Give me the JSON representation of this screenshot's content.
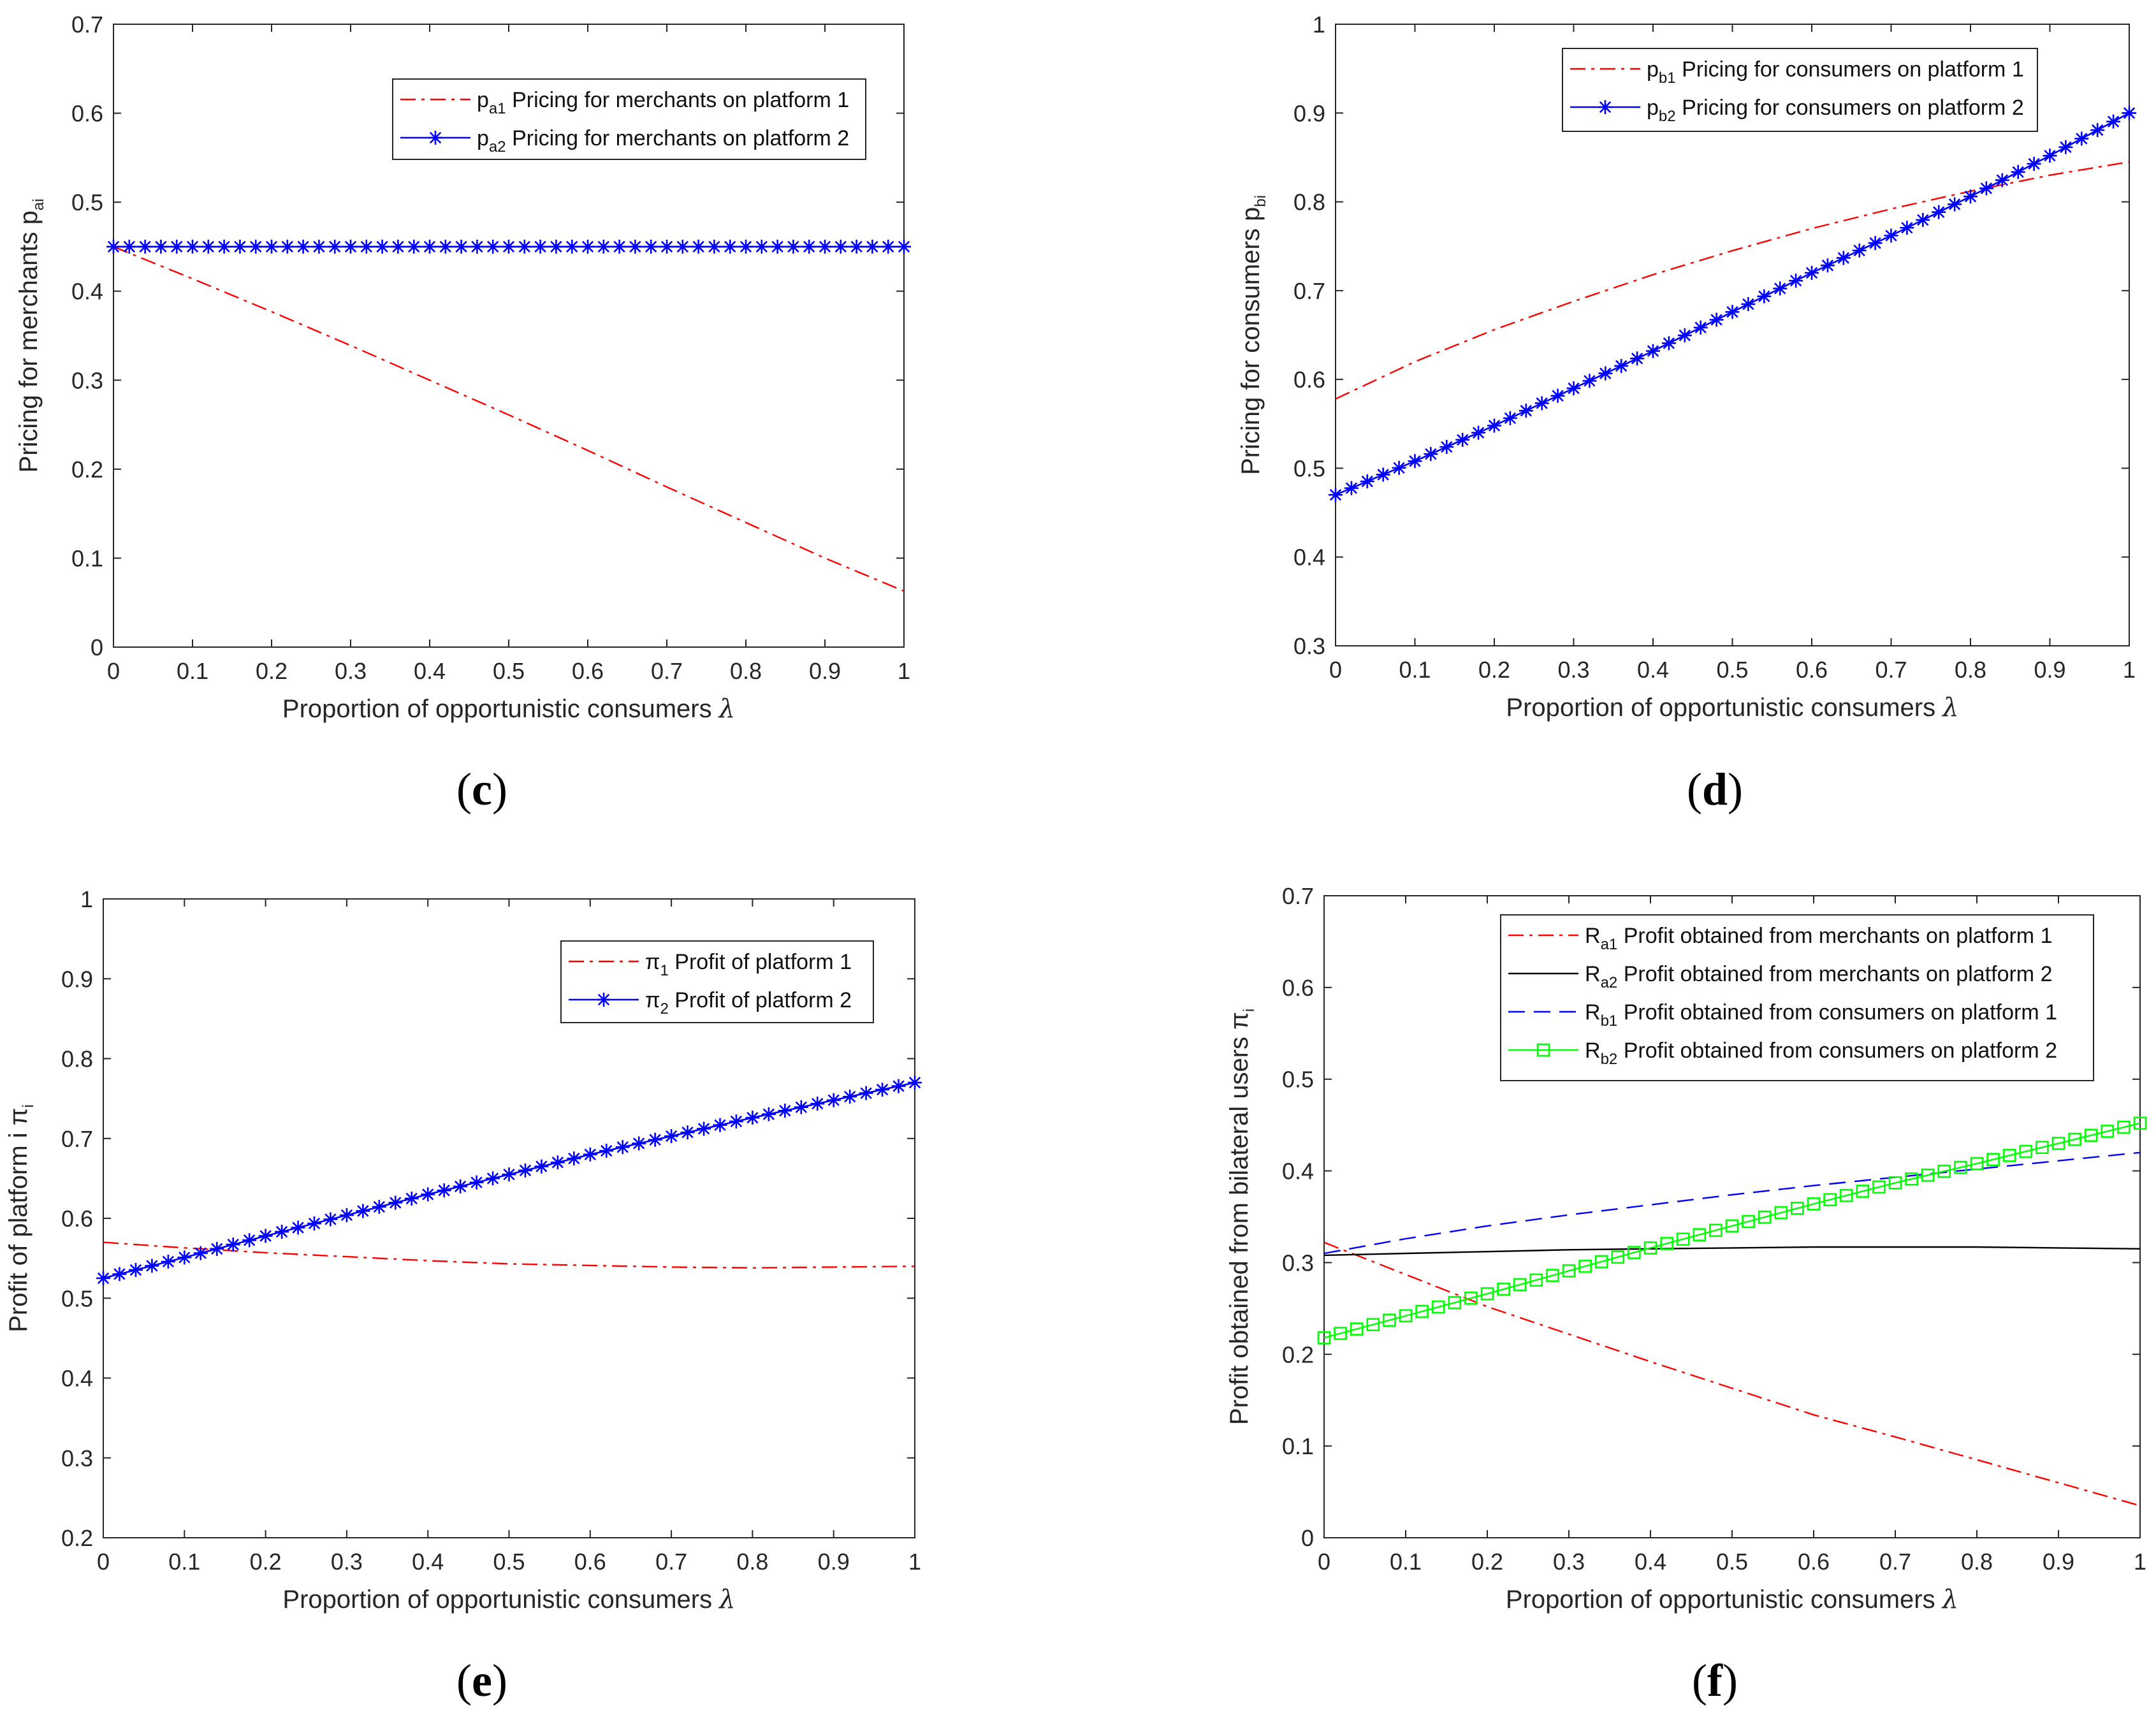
{
  "chart_data": [
    {
      "id": "c",
      "type": "line",
      "caption": "c",
      "xlabel": "Proportion of opportunistic consumers",
      "xlabel_sym": "λ",
      "ylabel": "Pricing for merchants",
      "ylabel_sym": "p",
      "ylabel_sub": "ai",
      "xlim": [
        0,
        1
      ],
      "ylim": [
        0,
        0.7
      ],
      "xticks": [
        0,
        0.1,
        0.2,
        0.3,
        0.4,
        0.5,
        0.6,
        0.7,
        0.8,
        0.9,
        1
      ],
      "xtick_labels": [
        "0",
        "0.1",
        "0.2",
        "0.3",
        "0.4",
        "0.5",
        "0.6",
        "0.7",
        "0.8",
        "0.9",
        "1"
      ],
      "yticks": [
        0,
        0.1,
        0.2,
        0.3,
        0.4,
        0.5,
        0.6,
        0.7
      ],
      "ytick_labels": [
        "0",
        "0.1",
        "0.2",
        "0.3",
        "0.4",
        "0.5",
        "0.6",
        "0.7"
      ],
      "legend_position": "top-right",
      "series": [
        {
          "name": "Pricing for merchants on platform 1",
          "sym": "p",
          "sub": "a1",
          "color": "#ff0000",
          "style": "dashdot",
          "marker": "none",
          "x": [
            0,
            0.1,
            0.2,
            0.3,
            0.4,
            0.5,
            0.6,
            0.7,
            0.8,
            0.9,
            1
          ],
          "y": [
            0.45,
            0.414,
            0.377,
            0.339,
            0.3,
            0.261,
            0.221,
            0.18,
            0.14,
            0.1,
            0.063
          ]
        },
        {
          "name": "Pricing for merchants on platform 2",
          "sym": "p",
          "sub": "a2",
          "color": "#0000ff",
          "style": "solid",
          "marker": "star",
          "x": [
            0,
            0.1,
            0.2,
            0.3,
            0.4,
            0.5,
            0.6,
            0.7,
            0.8,
            0.9,
            1
          ],
          "y": [
            0.45,
            0.45,
            0.45,
            0.45,
            0.45,
            0.45,
            0.45,
            0.45,
            0.45,
            0.45,
            0.45
          ]
        }
      ]
    },
    {
      "id": "d",
      "type": "line",
      "caption": "d",
      "xlabel": "Proportion of opportunistic consumers",
      "xlabel_sym": "λ",
      "ylabel": "Pricing for consumers",
      "ylabel_sym": "p",
      "ylabel_sub": "bi",
      "xlim": [
        0,
        1
      ],
      "ylim": [
        0.3,
        1
      ],
      "xticks": [
        0,
        0.1,
        0.2,
        0.3,
        0.4,
        0.5,
        0.6,
        0.7,
        0.8,
        0.9,
        1
      ],
      "xtick_labels": [
        "0",
        "0.1",
        "0.2",
        "0.3",
        "0.4",
        "0.5",
        "0.6",
        "0.7",
        "0.8",
        "0.9",
        "1"
      ],
      "yticks": [
        0.3,
        0.4,
        0.5,
        0.6,
        0.7,
        0.8,
        0.9,
        1
      ],
      "ytick_labels": [
        "0.3",
        "0.4",
        "0.5",
        "0.6",
        "0.7",
        "0.8",
        "0.9",
        "1"
      ],
      "legend_position": "top-right",
      "series": [
        {
          "name": "Pricing for consumers on platform 1",
          "sym": "p",
          "sub": "b1",
          "color": "#ff0000",
          "style": "dashdot",
          "marker": "none",
          "x": [
            0,
            0.1,
            0.2,
            0.3,
            0.4,
            0.5,
            0.6,
            0.7,
            0.8,
            0.9,
            1
          ],
          "y": [
            0.578,
            0.62,
            0.656,
            0.688,
            0.718,
            0.745,
            0.77,
            0.792,
            0.812,
            0.83,
            0.845
          ]
        },
        {
          "name": "Pricing for consumers on platform 2",
          "sym": "p",
          "sub": "b2",
          "color": "#0000ff",
          "style": "solid",
          "marker": "star",
          "x": [
            0,
            0.1,
            0.2,
            0.3,
            0.4,
            0.5,
            0.6,
            0.7,
            0.8,
            0.9,
            1
          ],
          "y": [
            0.47,
            0.508,
            0.548,
            0.59,
            0.632,
            0.676,
            0.72,
            0.762,
            0.806,
            0.852,
            0.9
          ]
        }
      ]
    },
    {
      "id": "e",
      "type": "line",
      "caption": "e",
      "xlabel": "Proportion of opportunistic consumers",
      "xlabel_sym": "λ",
      "ylabel": "Profit of platform i",
      "ylabel_sym": "π",
      "ylabel_sub": "i",
      "xlim": [
        0,
        1
      ],
      "ylim": [
        0.2,
        1
      ],
      "xticks": [
        0,
        0.1,
        0.2,
        0.3,
        0.4,
        0.5,
        0.6,
        0.7,
        0.8,
        0.9,
        1
      ],
      "xtick_labels": [
        "0",
        "0.1",
        "0.2",
        "0.3",
        "0.4",
        "0.5",
        "0.6",
        "0.7",
        "0.8",
        "0.9",
        "1"
      ],
      "yticks": [
        0.2,
        0.3,
        0.4,
        0.5,
        0.6,
        0.7,
        0.8,
        0.9,
        1
      ],
      "ytick_labels": [
        "0.2",
        "0.3",
        "0.4",
        "0.5",
        "0.6",
        "0.7",
        "0.8",
        "0.9",
        "1"
      ],
      "legend_position": "top-right",
      "series": [
        {
          "name": "Profit of platform 1",
          "sym": "π",
          "sub": "1",
          "color": "#ff0000",
          "style": "dashdot",
          "marker": "none",
          "x": [
            0,
            0.1,
            0.2,
            0.3,
            0.4,
            0.5,
            0.6,
            0.7,
            0.8,
            0.9,
            1
          ],
          "y": [
            0.57,
            0.563,
            0.557,
            0.552,
            0.547,
            0.543,
            0.541,
            0.539,
            0.538,
            0.539,
            0.54
          ]
        },
        {
          "name": "Profit of platform 2",
          "sym": "π",
          "sub": "2",
          "color": "#0000ff",
          "style": "solid",
          "marker": "star",
          "x": [
            0,
            0.1,
            0.2,
            0.3,
            0.4,
            0.5,
            0.6,
            0.7,
            0.8,
            0.9,
            1
          ],
          "y": [
            0.525,
            0.551,
            0.578,
            0.604,
            0.63,
            0.655,
            0.68,
            0.703,
            0.726,
            0.748,
            0.77
          ]
        }
      ]
    },
    {
      "id": "f",
      "type": "line",
      "caption": "f",
      "xlabel": "Proportion of opportunistic consumers",
      "xlabel_sym": "λ",
      "ylabel": "Profit obtained from bilateral users",
      "ylabel_sym": "π",
      "ylabel_sub": "i",
      "xlim": [
        0,
        1
      ],
      "ylim": [
        0,
        0.7
      ],
      "xticks": [
        0,
        0.1,
        0.2,
        0.3,
        0.4,
        0.5,
        0.6,
        0.7,
        0.8,
        0.9,
        1
      ],
      "xtick_labels": [
        "0",
        "0.1",
        "0.2",
        "0.3",
        "0.4",
        "0.5",
        "0.6",
        "0.7",
        "0.8",
        "0.9",
        "1"
      ],
      "yticks": [
        0,
        0.1,
        0.2,
        0.3,
        0.4,
        0.5,
        0.6,
        0.7
      ],
      "ytick_labels": [
        "0",
        "0.1",
        "0.2",
        "0.3",
        "0.4",
        "0.5",
        "0.6",
        "0.7"
      ],
      "legend_position": "top-right",
      "series": [
        {
          "name": "Profit obtained from merchants on platform 1",
          "sym": "R",
          "sub": "a1",
          "color": "#ff0000",
          "style": "dashdot",
          "marker": "none",
          "x": [
            0,
            0.1,
            0.2,
            0.3,
            0.4,
            0.5,
            0.6,
            0.7,
            0.8,
            0.9,
            1
          ],
          "y": [
            0.322,
            0.287,
            0.252,
            0.222,
            0.192,
            0.163,
            0.134,
            0.11,
            0.085,
            0.06,
            0.035
          ]
        },
        {
          "name": "Profit obtained from merchants on platform 2",
          "sym": "R",
          "sub": "a2",
          "color": "#000000",
          "style": "solid",
          "marker": "none",
          "x": [
            0,
            0.1,
            0.2,
            0.3,
            0.4,
            0.5,
            0.6,
            0.7,
            0.8,
            0.9,
            1
          ],
          "y": [
            0.308,
            0.31,
            0.312,
            0.314,
            0.315,
            0.316,
            0.317,
            0.317,
            0.317,
            0.316,
            0.315
          ]
        },
        {
          "name": "Profit obtained from consumers on platform 1",
          "sym": "R",
          "sub": "b1",
          "color": "#0000ff",
          "style": "dashed",
          "marker": "none",
          "x": [
            0,
            0.1,
            0.2,
            0.3,
            0.4,
            0.5,
            0.6,
            0.7,
            0.8,
            0.9,
            1
          ],
          "y": [
            0.31,
            0.326,
            0.34,
            0.352,
            0.363,
            0.374,
            0.384,
            0.393,
            0.402,
            0.411,
            0.42
          ]
        },
        {
          "name": "Profit obtained from consumers on platform 2",
          "sym": "R",
          "sub": "b2",
          "color": "#00ff00",
          "style": "solid",
          "marker": "square",
          "x": [
            0,
            0.1,
            0.2,
            0.3,
            0.4,
            0.5,
            0.6,
            0.7,
            0.8,
            0.9,
            1
          ],
          "y": [
            0.218,
            0.242,
            0.266,
            0.291,
            0.316,
            0.34,
            0.364,
            0.387,
            0.408,
            0.43,
            0.452
          ]
        }
      ]
    }
  ]
}
